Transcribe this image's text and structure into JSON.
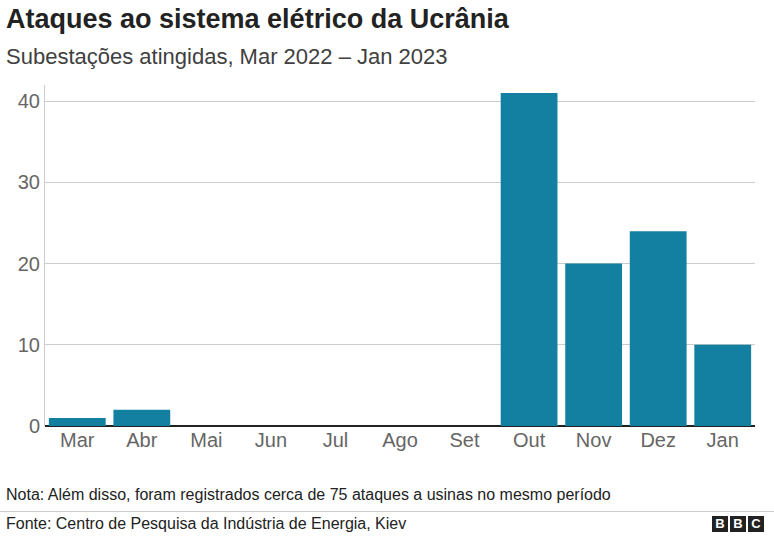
{
  "chart_data": {
    "type": "bar",
    "title": "Ataques ao sistema elétrico da Ucrânia",
    "subtitle": "Subestações atingidas, Mar 2022 – Jan 2023",
    "categories": [
      "Mar",
      "Abr",
      "Mai",
      "Jun",
      "Jul",
      "Ago",
      "Set",
      "Out",
      "Nov",
      "Dez",
      "Jan"
    ],
    "values": [
      1,
      2,
      0,
      0,
      0,
      0,
      0,
      41,
      20,
      24,
      10
    ],
    "color": "#1380a1",
    "ylim": [
      0,
      42
    ],
    "yticks": [
      0,
      10,
      20,
      30,
      40
    ],
    "grid": true,
    "note": "Nota: Além disso, foram registrados cerca de 75 ataques a usinas no mesmo período",
    "source": "Fonte: Centro de Pesquisa da Indústria de Energia, Kiev",
    "logo": "BBC"
  }
}
